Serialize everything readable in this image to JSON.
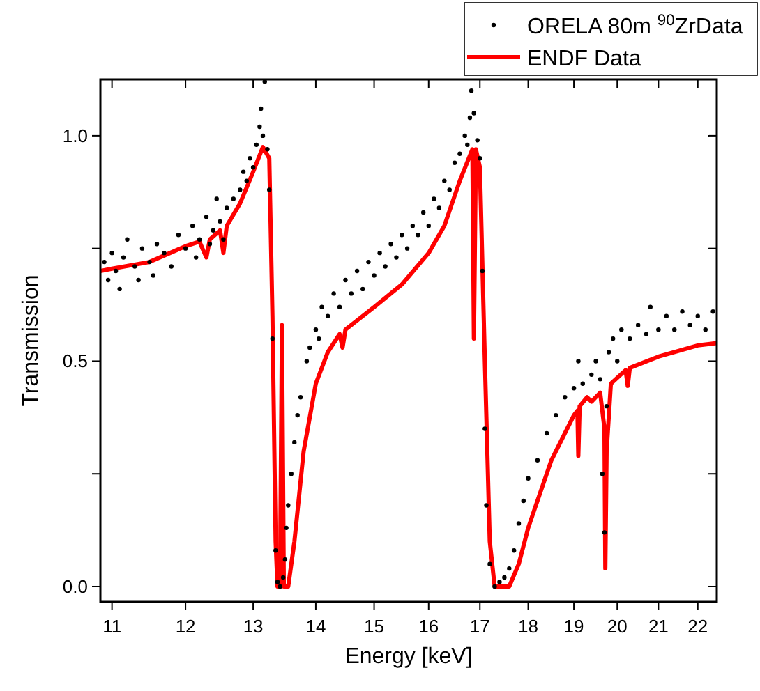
{
  "chart_data": {
    "type": "scatter",
    "xlabel": "Energy [keV]",
    "ylabel": "Transmission",
    "log": "x",
    "xlim": [
      10.85,
      22.5
    ],
    "ylim": [
      -0.034,
      1.125
    ],
    "xticks": [
      11,
      12,
      13,
      14,
      15,
      16,
      17,
      18,
      19,
      20,
      21,
      22
    ],
    "yticks": [
      {
        "value": 0,
        "label": "0.0"
      },
      {
        "value": 0.25,
        "label": null
      },
      {
        "value": 0.5,
        "label": "0.5"
      },
      {
        "value": 0.75,
        "label": null
      },
      {
        "value": 1,
        "label": "1.0"
      }
    ],
    "legend": "top right",
    "grid": false,
    "series": [
      {
        "name": "ORELA 80m $^{90}$ZrData",
        "marker": "circle",
        "color": "#000000",
        "x": [
          10.9,
          10.95,
          11.0,
          11.05,
          11.1,
          11.15,
          11.2,
          11.3,
          11.35,
          11.4,
          11.5,
          11.55,
          11.6,
          11.7,
          11.8,
          11.9,
          12.0,
          12.1,
          12.15,
          12.2,
          12.3,
          12.35,
          12.4,
          12.45,
          12.5,
          12.55,
          12.6,
          12.7,
          12.8,
          12.85,
          12.9,
          12.95,
          13.0,
          13.05,
          13.1,
          13.12,
          13.15,
          13.18,
          13.22,
          13.25,
          13.3,
          13.35,
          13.38,
          13.42,
          13.47,
          13.5,
          13.52,
          13.55,
          13.6,
          13.65,
          13.7,
          13.75,
          13.85,
          13.9,
          14.0,
          14.05,
          14.1,
          14.2,
          14.3,
          14.4,
          14.5,
          14.6,
          14.7,
          14.8,
          14.9,
          15.0,
          15.1,
          15.2,
          15.3,
          15.4,
          15.5,
          15.6,
          15.7,
          15.8,
          15.9,
          16.0,
          16.1,
          16.2,
          16.3,
          16.4,
          16.5,
          16.6,
          16.7,
          16.75,
          16.8,
          16.83,
          16.88,
          16.95,
          17.0,
          17.05,
          17.1,
          17.13,
          17.2,
          17.3,
          17.4,
          17.5,
          17.6,
          17.7,
          17.8,
          17.9,
          18.0,
          18.2,
          18.4,
          18.6,
          18.8,
          19.0,
          19.1,
          19.2,
          19.4,
          19.5,
          19.6,
          19.65,
          19.7,
          19.75,
          19.8,
          19.9,
          20.0,
          20.1,
          20.3,
          20.5,
          20.7,
          20.8,
          21.0,
          21.2,
          21.4,
          21.6,
          21.8,
          22.0,
          22.2,
          22.4
        ],
        "values": [
          0.72,
          0.68,
          0.74,
          0.7,
          0.66,
          0.73,
          0.77,
          0.71,
          0.68,
          0.75,
          0.72,
          0.69,
          0.76,
          0.74,
          0.71,
          0.78,
          0.75,
          0.8,
          0.73,
          0.77,
          0.82,
          0.76,
          0.79,
          0.86,
          0.81,
          0.77,
          0.84,
          0.86,
          0.88,
          0.92,
          0.9,
          0.95,
          0.93,
          0.98,
          1.02,
          1.06,
          1.0,
          1.12,
          0.97,
          0.88,
          0.55,
          0.08,
          0.01,
          0.0,
          0.02,
          0.06,
          0.13,
          0.18,
          0.25,
          0.32,
          0.38,
          0.42,
          0.5,
          0.53,
          0.57,
          0.55,
          0.62,
          0.6,
          0.65,
          0.62,
          0.68,
          0.65,
          0.7,
          0.66,
          0.72,
          0.69,
          0.74,
          0.71,
          0.76,
          0.73,
          0.78,
          0.75,
          0.8,
          0.78,
          0.83,
          0.8,
          0.86,
          0.84,
          0.9,
          0.88,
          0.94,
          0.96,
          1.0,
          0.98,
          1.04,
          1.1,
          1.05,
          0.99,
          0.95,
          0.7,
          0.35,
          0.18,
          0.05,
          0.0,
          0.01,
          0.02,
          0.04,
          0.08,
          0.14,
          0.19,
          0.24,
          0.28,
          0.34,
          0.38,
          0.42,
          0.44,
          0.5,
          0.45,
          0.47,
          0.5,
          0.46,
          0.25,
          0.12,
          0.4,
          0.52,
          0.55,
          0.5,
          0.57,
          0.55,
          0.58,
          0.56,
          0.62,
          0.57,
          0.6,
          0.57,
          0.61,
          0.58,
          0.6,
          0.57,
          0.61
        ]
      },
      {
        "name": "ENDF Data",
        "type": "line",
        "line_style": "solid",
        "color": "#ff0000",
        "x": [
          10.85,
          11.0,
          11.5,
          12.0,
          12.2,
          12.3,
          12.35,
          12.5,
          12.55,
          12.6,
          12.8,
          13.0,
          13.15,
          13.25,
          13.3,
          13.35,
          13.38,
          13.42,
          13.45,
          13.48,
          13.55,
          13.65,
          13.8,
          14.0,
          14.2,
          14.4,
          14.45,
          14.5,
          15.0,
          15.5,
          16.0,
          16.3,
          16.6,
          16.85,
          16.88,
          16.92,
          17.0,
          17.1,
          17.2,
          17.3,
          17.6,
          17.8,
          18.0,
          18.5,
          19.0,
          19.08,
          19.1,
          19.13,
          19.3,
          19.4,
          19.6,
          19.7,
          19.72,
          19.75,
          19.85,
          20.2,
          20.25,
          20.3,
          21.0,
          22.0,
          22.5
        ],
        "values": [
          0.7,
          0.705,
          0.72,
          0.755,
          0.765,
          0.73,
          0.77,
          0.79,
          0.74,
          0.8,
          0.85,
          0.92,
          0.975,
          0.95,
          0.6,
          0.1,
          0.0,
          0.0,
          0.58,
          0.0,
          0.0,
          0.1,
          0.3,
          0.45,
          0.52,
          0.56,
          0.53,
          0.57,
          0.62,
          0.67,
          0.74,
          0.8,
          0.9,
          0.97,
          0.55,
          0.97,
          0.93,
          0.5,
          0.1,
          0.0,
          0.0,
          0.05,
          0.13,
          0.28,
          0.38,
          0.39,
          0.29,
          0.4,
          0.42,
          0.41,
          0.43,
          0.35,
          0.04,
          0.3,
          0.45,
          0.48,
          0.445,
          0.485,
          0.51,
          0.535,
          0.54
        ]
      }
    ]
  }
}
